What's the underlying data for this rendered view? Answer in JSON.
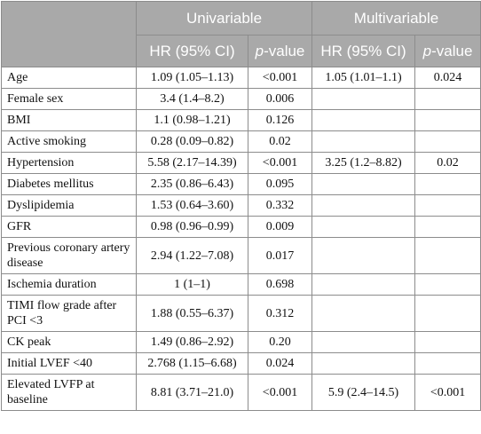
{
  "header": {
    "univariable": "Univariable",
    "multivariable": "Multivariable",
    "hr_label": "HR (95% CI)",
    "p_label_italic": "p",
    "p_label_rest": "-value"
  },
  "rows": [
    {
      "label": "Age",
      "uni_hr": "1.09 (1.05–1.13)",
      "uni_p": "<0.001",
      "multi_hr": "1.05 (1.01–1.1)",
      "multi_p": "0.024"
    },
    {
      "label": "Female sex",
      "uni_hr": "3.4 (1.4–8.2)",
      "uni_p": "0.006",
      "multi_hr": "",
      "multi_p": ""
    },
    {
      "label": "BMI",
      "uni_hr": "1.1 (0.98–1.21)",
      "uni_p": "0.126",
      "multi_hr": "",
      "multi_p": ""
    },
    {
      "label": "Active smoking",
      "uni_hr": "0.28 (0.09–0.82)",
      "uni_p": "0.02",
      "multi_hr": "",
      "multi_p": ""
    },
    {
      "label": "Hypertension",
      "uni_hr": "5.58 (2.17–14.39)",
      "uni_p": "<0.001",
      "multi_hr": "3.25 (1.2–8.82)",
      "multi_p": "0.02"
    },
    {
      "label": "Diabetes mellitus",
      "uni_hr": "2.35 (0.86–6.43)",
      "uni_p": "0.095",
      "multi_hr": "",
      "multi_p": ""
    },
    {
      "label": "Dyslipidemia",
      "uni_hr": "1.53 (0.64–3.60)",
      "uni_p": "0.332",
      "multi_hr": "",
      "multi_p": ""
    },
    {
      "label": "GFR",
      "uni_hr": "0.98 (0.96–0.99)",
      "uni_p": "0.009",
      "multi_hr": "",
      "multi_p": ""
    },
    {
      "label": "Previous coronary artery disease",
      "uni_hr": "2.94 (1.22–7.08)",
      "uni_p": "0.017",
      "multi_hr": "",
      "multi_p": ""
    },
    {
      "label": "Ischemia duration",
      "uni_hr": "1 (1–1)",
      "uni_p": "0.698",
      "multi_hr": "",
      "multi_p": ""
    },
    {
      "label": "TIMI flow grade after PCI <3",
      "uni_hr": "1.88 (0.55–6.37)",
      "uni_p": "0.312",
      "multi_hr": "",
      "multi_p": ""
    },
    {
      "label": "CK peak",
      "uni_hr": "1.49 (0.86–2.92)",
      "uni_p": "0.20",
      "multi_hr": "",
      "multi_p": ""
    },
    {
      "label": "Initial LVEF <40",
      "uni_hr": "2.768 (1.15–6.68)",
      "uni_p": "0.024",
      "multi_hr": "",
      "multi_p": ""
    },
    {
      "label": "Elevated LVFP at baseline",
      "uni_hr": "8.81 (3.71–21.0)",
      "uni_p": "<0.001",
      "multi_hr": "5.9 (2.4–14.5)",
      "multi_p": "<0.001"
    }
  ]
}
